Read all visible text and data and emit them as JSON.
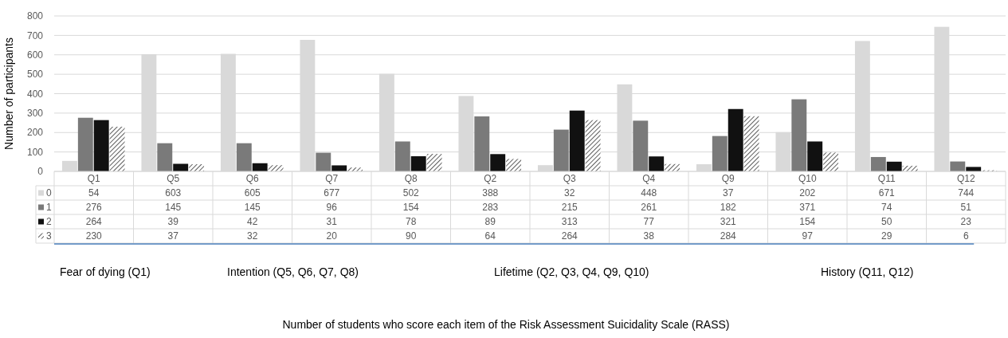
{
  "chart_data": {
    "type": "bar",
    "ylabel": "Number of participants",
    "categories": [
      "Q1",
      "Q5",
      "Q6",
      "Q7",
      "Q8",
      "Q2",
      "Q3",
      "Q4",
      "Q9",
      "Q10",
      "Q11",
      "Q12"
    ],
    "series": [
      {
        "name": "0",
        "color": "#d9d9d9",
        "values": [
          54,
          603,
          605,
          677,
          502,
          388,
          32,
          448,
          37,
          202,
          671,
          744
        ]
      },
      {
        "name": "1",
        "color": "#7a7a7a",
        "values": [
          276,
          145,
          145,
          96,
          154,
          283,
          215,
          261,
          182,
          371,
          74,
          51
        ]
      },
      {
        "name": "2",
        "color": "#111111",
        "values": [
          264,
          39,
          42,
          31,
          78,
          89,
          313,
          77,
          321,
          154,
          50,
          23
        ]
      },
      {
        "name": "3",
        "color": "#333333",
        "values": [
          230,
          37,
          32,
          20,
          90,
          64,
          264,
          38,
          284,
          97,
          29,
          6
        ]
      }
    ],
    "ylim": [
      0,
      800
    ],
    "yticks": [
      0,
      100,
      200,
      300,
      400,
      500,
      600,
      700,
      800
    ],
    "grid": "y",
    "legend": "bottom",
    "data_labels": true,
    "annotations": [
      "Fear of dying (Q1)",
      "Intention (Q5, Q6, Q7, Q8)",
      "Lifetime (Q2, Q3, Q4, Q9, Q10)",
      "History (Q11, Q12)",
      "Number of students who score each item of the Risk Assessment Suicidality Scale (RASS)"
    ]
  }
}
